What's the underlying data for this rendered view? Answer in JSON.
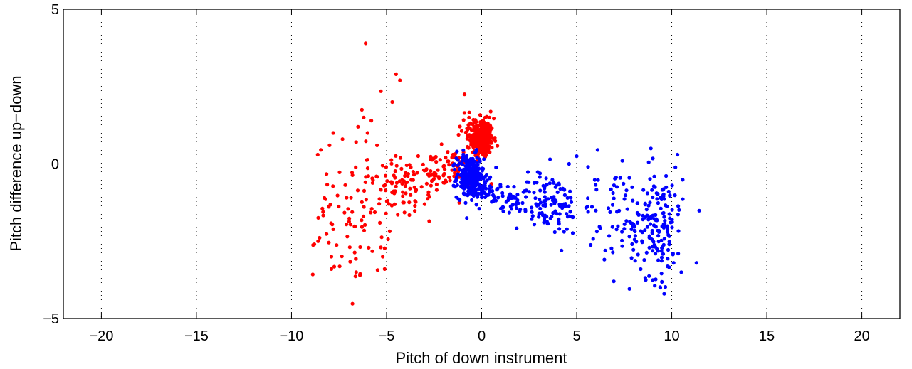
{
  "chart_data": {
    "type": "scatter",
    "title": "",
    "xlabel": "Pitch of down instrument",
    "ylabel": "Pitch difference up−down",
    "xlim": [
      -22,
      22
    ],
    "ylim": [
      -5,
      5
    ],
    "xticks": [
      -20,
      -15,
      -10,
      -5,
      0,
      5,
      10,
      15,
      20
    ],
    "yticks": [
      -5,
      0,
      5
    ],
    "xtick_labels": [
      "−20",
      "−15",
      "−10",
      "−5",
      "0",
      "5",
      "10",
      "15",
      "20"
    ],
    "ytick_labels": [
      "−5",
      "0",
      "5"
    ],
    "grid": true,
    "legend": "none",
    "series": [
      {
        "color": "#ff0000",
        "clusters": [
          {
            "x": 0.0,
            "y": 0.8,
            "sx": 0.3,
            "sy": 0.3,
            "n": 320
          },
          {
            "x": -0.3,
            "y": 1.3,
            "sx": 0.4,
            "sy": 0.2,
            "n": 30
          },
          {
            "x": -2.0,
            "y": -0.25,
            "sx": 0.9,
            "sy": 0.35,
            "n": 90
          },
          {
            "x": -4.2,
            "y": -0.8,
            "sx": 0.8,
            "sy": 0.5,
            "n": 70
          },
          {
            "x": -6.8,
            "y": -1.5,
            "sx": 1.0,
            "sy": 1.1,
            "n": 90
          }
        ],
        "points": [
          [
            -6.1,
            3.9
          ],
          [
            -4.5,
            2.9
          ],
          [
            -4.3,
            2.7
          ],
          [
            -5.3,
            2.35
          ],
          [
            -4.7,
            2.0
          ],
          [
            -0.9,
            2.25
          ],
          [
            -6.3,
            1.75
          ],
          [
            -6.2,
            1.5
          ],
          [
            -5.8,
            1.4
          ],
          [
            -6.5,
            1.2
          ],
          [
            -7.8,
            1.0
          ],
          [
            -6.0,
            1.0
          ],
          [
            -8.0,
            0.6
          ],
          [
            -5.5,
            0.6
          ],
          [
            -8.8,
            -2.6
          ],
          [
            -8.6,
            -2.5
          ],
          [
            -7.9,
            -3.0
          ],
          [
            -7.9,
            -3.4
          ],
          [
            -6.6,
            -3.5
          ],
          [
            -6.4,
            -3.6
          ],
          [
            -5.1,
            -3.4
          ],
          [
            -5.2,
            -3.0
          ],
          [
            -5.3,
            -2.7
          ],
          [
            -3.0,
            -1.3
          ],
          [
            -3.5,
            -1.2
          ],
          [
            -2.8,
            -1.0
          ],
          [
            -1.5,
            0.3
          ],
          [
            -1.2,
            0.2
          ]
        ]
      },
      {
        "color": "#0000ff",
        "clusters": [
          {
            "x": -0.6,
            "y": -0.4,
            "sx": 0.35,
            "sy": 0.35,
            "n": 260
          },
          {
            "x": 0.1,
            "y": -0.8,
            "sx": 0.4,
            "sy": 0.2,
            "n": 50
          },
          {
            "x": 1.5,
            "y": -1.2,
            "sx": 0.5,
            "sy": 0.15,
            "n": 30
          },
          {
            "x": 3.5,
            "y": -1.3,
            "sx": 0.9,
            "sy": 0.5,
            "n": 120
          },
          {
            "x": 7.0,
            "y": -1.6,
            "sx": 0.9,
            "sy": 0.7,
            "n": 50
          },
          {
            "x": 9.2,
            "y": -1.9,
            "sx": 0.7,
            "sy": 0.9,
            "n": 170
          }
        ],
        "points": [
          [
            3.6,
            0.15
          ],
          [
            5.0,
            0.25
          ],
          [
            6.1,
            0.45
          ],
          [
            7.4,
            0.1
          ],
          [
            8.9,
            0.5
          ],
          [
            10.3,
            0.3
          ],
          [
            4.6,
            0.0
          ],
          [
            5.6,
            -0.1
          ],
          [
            9.4,
            -4.0
          ],
          [
            9.6,
            -4.2
          ],
          [
            10.1,
            -3.2
          ],
          [
            11.3,
            -3.2
          ],
          [
            10.5,
            -3.5
          ],
          [
            4.2,
            -2.8
          ],
          [
            6.5,
            -2.8
          ],
          [
            2.9,
            -0.6
          ],
          [
            3.3,
            -0.8
          ],
          [
            2.5,
            -0.9
          ],
          [
            -1.3,
            0.4
          ]
        ]
      }
    ]
  }
}
